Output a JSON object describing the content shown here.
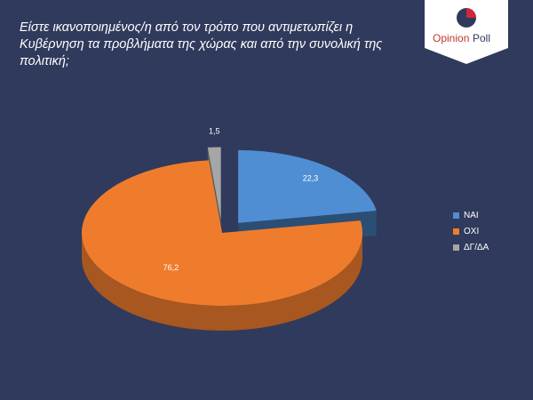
{
  "question": "Είστε ικανοποιημένος/η από τον τρόπο που αντιμετωπίζει η Κυβέρνηση τα προβλήματα της χώρας και από την συνολική της πολιτική;",
  "logo": {
    "brand_first": "Opinion",
    "brand_second": "Poll"
  },
  "chart_data": {
    "type": "pie",
    "title": "Είστε ικανοποιημένος/η από τον τρόπο που αντιμετωπίζει η Κυβέρνηση τα προβλήματα της χώρας και από την συνολική της πολιτική;",
    "categories": [
      "ΝΑΙ",
      "ΟΧΙ",
      "ΔΓ/ΔΑ"
    ],
    "values": [
      22.3,
      76.2,
      1.5
    ],
    "value_labels": [
      "22,3",
      "76,2",
      "1,5"
    ],
    "colors": [
      "#4f8ed3",
      "#ef7c2c",
      "#a6a6a6"
    ],
    "style": "3d-exploded",
    "legend_position": "right"
  },
  "legend": [
    {
      "label": "ΝΑΙ",
      "color": "#4f8ed3"
    },
    {
      "label": "ΟΧΙ",
      "color": "#ef7c2c"
    },
    {
      "label": "ΔΓ/ΔΑ",
      "color": "#a6a6a6"
    }
  ]
}
